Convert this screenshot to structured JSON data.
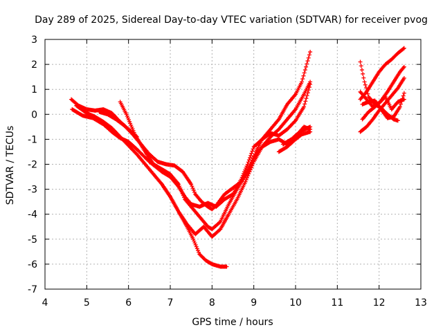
{
  "chart_data": {
    "type": "scatter",
    "title": "Day 289 of 2025, Sidereal Day-to-day VTEC variation (SDTVAR) for receiver pvog",
    "xlabel": "GPS time / hours",
    "ylabel": "SDTVAR / TECUs",
    "xlim": [
      4,
      13
    ],
    "ylim": [
      -7,
      3
    ],
    "xticks": [
      "4",
      "5",
      "6",
      "7",
      "8",
      "9",
      "10",
      "11",
      "12",
      "13"
    ],
    "yticks": [
      "-7",
      "-6",
      "-5",
      "-4",
      "-3",
      "-2",
      "-1",
      "0",
      "1",
      "2",
      "3"
    ],
    "grid": true,
    "marker": "+",
    "color": "#ff0000",
    "tracks": [
      [
        [
          4.63,
          0.6
        ],
        [
          4.8,
          0.35
        ],
        [
          5.0,
          0.2
        ],
        [
          5.2,
          0.15
        ],
        [
          5.4,
          0.2
        ],
        [
          5.6,
          0.05
        ],
        [
          5.8,
          -0.3
        ],
        [
          6.0,
          -0.6
        ],
        [
          6.2,
          -0.9
        ]
      ],
      [
        [
          4.65,
          0.2
        ],
        [
          4.9,
          -0.05
        ],
        [
          5.15,
          -0.15
        ],
        [
          5.4,
          -0.4
        ],
        [
          5.6,
          -0.7
        ],
        [
          5.8,
          -0.95
        ],
        [
          6.0,
          -1.1
        ],
        [
          6.2,
          -1.4
        ],
        [
          6.5,
          -1.9
        ],
        [
          6.8,
          -2.3
        ],
        [
          7.0,
          -2.5
        ],
        [
          7.2,
          -2.9
        ],
        [
          7.35,
          -3.3
        ],
        [
          7.5,
          -3.6
        ],
        [
          7.7,
          -3.7
        ],
        [
          7.9,
          -3.55
        ],
        [
          8.1,
          -3.7
        ],
        [
          8.3,
          -3.4
        ],
        [
          8.5,
          -3.2
        ],
        [
          8.7,
          -2.6
        ],
        [
          8.85,
          -2.0
        ],
        [
          9.0,
          -1.3
        ],
        [
          9.2,
          -1.0
        ],
        [
          9.4,
          -0.75
        ],
        [
          9.6,
          -0.85
        ],
        [
          9.8,
          -0.6
        ],
        [
          10.0,
          -0.25
        ],
        [
          10.2,
          0.3
        ],
        [
          10.35,
          1.2
        ]
      ],
      [
        [
          4.75,
          0.35
        ],
        [
          5.0,
          0.05
        ],
        [
          5.2,
          -0.1
        ],
        [
          5.4,
          -0.3
        ],
        [
          5.6,
          -0.55
        ],
        [
          5.8,
          -0.9
        ],
        [
          6.0,
          -1.25
        ],
        [
          6.2,
          -1.6
        ],
        [
          6.4,
          -2.0
        ],
        [
          6.6,
          -2.4
        ],
        [
          6.8,
          -2.8
        ],
        [
          7.0,
          -3.3
        ],
        [
          7.2,
          -3.9
        ],
        [
          7.4,
          -4.4
        ],
        [
          7.6,
          -4.8
        ],
        [
          7.8,
          -4.5
        ],
        [
          8.0,
          -4.9
        ],
        [
          8.2,
          -4.6
        ],
        [
          8.4,
          -4.0
        ],
        [
          8.6,
          -3.4
        ],
        [
          8.8,
          -2.7
        ],
        [
          9.0,
          -1.9
        ],
        [
          9.2,
          -1.3
        ],
        [
          9.4,
          -0.9
        ],
        [
          9.6,
          -0.6
        ],
        [
          9.8,
          -0.2
        ],
        [
          10.0,
          0.2
        ],
        [
          10.2,
          0.8
        ],
        [
          10.35,
          1.3
        ]
      ],
      [
        [
          5.3,
          0.1
        ],
        [
          5.5,
          0.0
        ],
        [
          5.7,
          -0.2
        ],
        [
          5.9,
          -0.45
        ],
        [
          6.1,
          -0.8
        ],
        [
          6.3,
          -1.2
        ],
        [
          6.5,
          -1.6
        ],
        [
          6.7,
          -1.9
        ],
        [
          6.9,
          -2.0
        ],
        [
          7.1,
          -2.05
        ],
        [
          7.3,
          -2.3
        ],
        [
          7.5,
          -2.8
        ],
        [
          7.6,
          -3.2
        ],
        [
          7.75,
          -3.5
        ],
        [
          7.9,
          -3.7
        ],
        [
          8.0,
          -3.8
        ],
        [
          8.1,
          -3.65
        ],
        [
          8.3,
          -3.2
        ],
        [
          8.5,
          -2.95
        ],
        [
          8.7,
          -2.7
        ],
        [
          8.9,
          -2.2
        ],
        [
          9.05,
          -1.5
        ],
        [
          9.2,
          -1.0
        ],
        [
          9.4,
          -0.6
        ],
        [
          9.6,
          -0.2
        ],
        [
          9.8,
          0.4
        ],
        [
          10.0,
          0.8
        ],
        [
          10.15,
          1.3
        ],
        [
          10.25,
          1.9
        ],
        [
          10.35,
          2.5
        ]
      ],
      [
        [
          5.8,
          0.5
        ],
        [
          5.95,
          0.0
        ],
        [
          6.15,
          -0.8
        ],
        [
          6.4,
          -1.5
        ],
        [
          6.6,
          -2.0
        ],
        [
          6.8,
          -2.2
        ],
        [
          7.0,
          -2.4
        ],
        [
          7.2,
          -2.8
        ],
        [
          7.35,
          -3.4
        ],
        [
          7.5,
          -3.7
        ],
        [
          7.7,
          -4.1
        ],
        [
          7.9,
          -4.5
        ],
        [
          8.0,
          -4.6
        ],
        [
          8.2,
          -4.3
        ],
        [
          8.4,
          -3.6
        ],
        [
          8.6,
          -3.0
        ],
        [
          8.8,
          -2.4
        ],
        [
          9.0,
          -1.7
        ],
        [
          9.2,
          -1.3
        ],
        [
          9.4,
          -1.1
        ],
        [
          9.6,
          -1.0
        ],
        [
          9.8,
          -1.2
        ],
        [
          10.0,
          -0.9
        ],
        [
          10.2,
          -0.5
        ],
        [
          10.35,
          -0.6
        ]
      ],
      [
        [
          6.8,
          -2.8
        ],
        [
          7.0,
          -3.3
        ],
        [
          7.2,
          -3.9
        ],
        [
          7.4,
          -4.5
        ],
        [
          7.55,
          -5.0
        ],
        [
          7.7,
          -5.6
        ],
        [
          7.85,
          -5.85
        ],
        [
          8.0,
          -6.0
        ],
        [
          8.2,
          -6.1
        ],
        [
          8.35,
          -6.1
        ]
      ],
      [
        [
          9.6,
          -1.5
        ],
        [
          9.8,
          -1.3
        ],
        [
          10.0,
          -1.0
        ],
        [
          10.15,
          -0.8
        ],
        [
          10.35,
          -0.7
        ]
      ],
      [
        [
          9.7,
          -1.2
        ],
        [
          9.9,
          -1.0
        ],
        [
          10.1,
          -0.7
        ],
        [
          10.35,
          -0.5
        ]
      ],
      [
        [
          11.55,
          -0.7
        ],
        [
          11.7,
          -0.5
        ],
        [
          11.85,
          -0.2
        ],
        [
          12.0,
          0.15
        ],
        [
          12.15,
          0.45
        ],
        [
          12.3,
          0.75
        ],
        [
          12.45,
          1.05
        ],
        [
          12.6,
          1.45
        ]
      ],
      [
        [
          11.6,
          -0.2
        ],
        [
          11.75,
          0.1
        ],
        [
          11.9,
          0.3
        ],
        [
          12.05,
          0.55
        ],
        [
          12.2,
          0.9
        ],
        [
          12.35,
          1.3
        ],
        [
          12.5,
          1.7
        ],
        [
          12.6,
          1.9
        ]
      ],
      [
        [
          11.55,
          2.1
        ],
        [
          11.65,
          1.3
        ],
        [
          11.75,
          0.7
        ],
        [
          11.9,
          0.4
        ],
        [
          12.05,
          0.25
        ],
        [
          12.2,
          0.0
        ],
        [
          12.35,
          -0.2
        ],
        [
          12.45,
          -0.25
        ]
      ],
      [
        [
          11.55,
          0.6
        ],
        [
          11.7,
          0.9
        ],
        [
          11.85,
          1.3
        ],
        [
          12.0,
          1.7
        ],
        [
          12.15,
          2.0
        ],
        [
          12.3,
          2.2
        ],
        [
          12.45,
          2.45
        ],
        [
          12.6,
          2.65
        ]
      ],
      [
        [
          11.6,
          0.4
        ],
        [
          11.75,
          0.5
        ],
        [
          11.9,
          0.55
        ],
        [
          12.05,
          0.2
        ],
        [
          12.2,
          -0.15
        ],
        [
          12.35,
          -0.1
        ],
        [
          12.5,
          0.3
        ],
        [
          12.6,
          0.85
        ]
      ],
      [
        [
          11.55,
          0.9
        ],
        [
          11.7,
          0.6
        ],
        [
          11.85,
          0.3
        ],
        [
          12.0,
          0.45
        ],
        [
          12.15,
          0.7
        ],
        [
          12.3,
          0.2
        ],
        [
          12.45,
          0.5
        ],
        [
          12.6,
          0.6
        ]
      ]
    ]
  }
}
